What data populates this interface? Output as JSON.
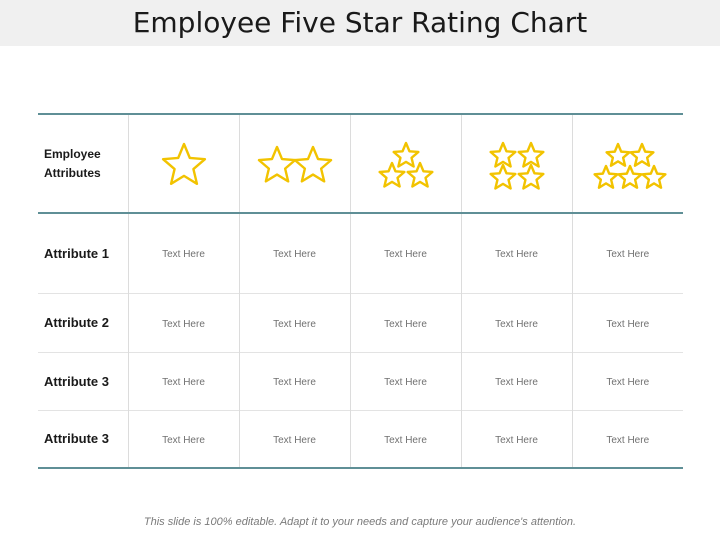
{
  "title": "Employee Five Star Rating Chart",
  "table": {
    "header_label": [
      "Employee",
      "Attributes"
    ],
    "star_columns": [
      1,
      2,
      3,
      4,
      5
    ],
    "rows": [
      {
        "label": "Attribute 1",
        "cells": [
          "Text Here",
          "Text Here",
          "Text Here",
          "Text Here",
          "Text Here"
        ]
      },
      {
        "label": "Attribute 2",
        "cells": [
          "Text Here",
          "Text Here",
          "Text Here",
          "Text Here",
          "Text Here"
        ]
      },
      {
        "label": "Attribute 3",
        "cells": [
          "Text Here",
          "Text Here",
          "Text Here",
          "Text Here",
          "Text Here"
        ]
      },
      {
        "label": "Attribute 3",
        "cells": [
          "Text Here",
          "Text Here",
          "Text Here",
          "Text Here",
          "Text Here"
        ]
      }
    ]
  },
  "footer": "This slide is 100% editable. Adapt it to your needs and capture your audience's attention.",
  "colors": {
    "star": "#f2c300",
    "rule": "#5f8f96"
  },
  "icons": {
    "rating": "star-icon"
  }
}
